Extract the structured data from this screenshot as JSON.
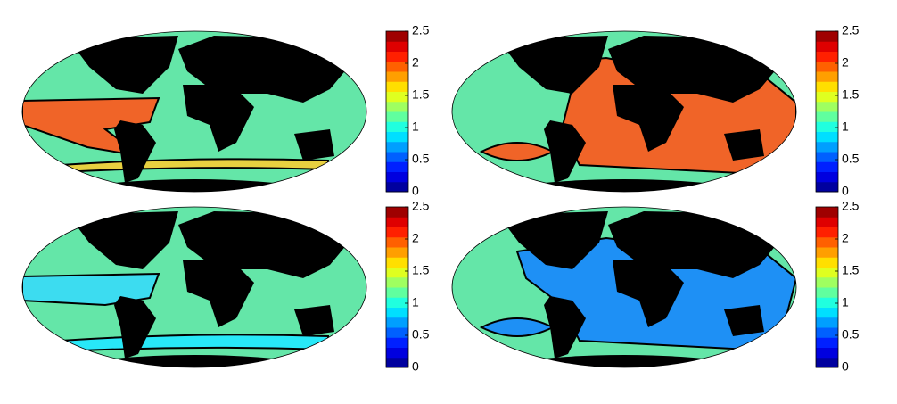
{
  "panels": [
    {
      "colorbar": {
        "ylim": [
          0,
          2.5
        ],
        "yticks": [
          0,
          0.5,
          1,
          1.5,
          2,
          2.5
        ]
      }
    },
    {
      "colorbar": {
        "ylim": [
          0,
          2.5
        ],
        "yticks": [
          0,
          0.5,
          1,
          1.5,
          2,
          2.5
        ]
      }
    },
    {
      "colorbar": {
        "ylim": [
          0,
          2.5
        ],
        "yticks": [
          0,
          0.5,
          1,
          1.5,
          2,
          2.5
        ]
      }
    },
    {
      "colorbar": {
        "ylim": [
          0,
          2.5
        ],
        "yticks": [
          0,
          0.5,
          1,
          1.5,
          2,
          2.5
        ]
      }
    }
  ]
}
